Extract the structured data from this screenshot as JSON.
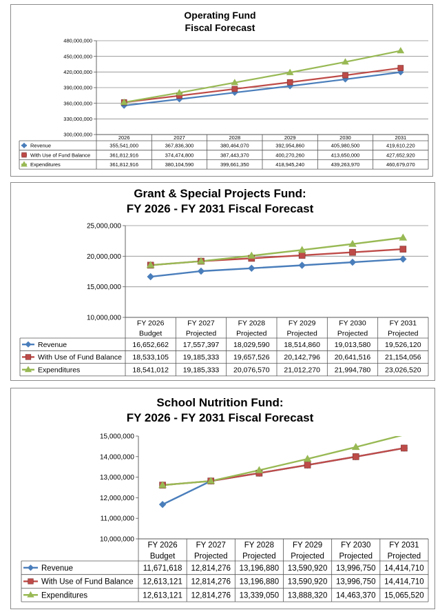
{
  "chart_data": [
    {
      "type": "line",
      "title": "Operating Fund",
      "subtitle": "Fiscal Forecast",
      "categories": [
        "2026",
        "2027",
        "2028",
        "2029",
        "2030",
        "2031"
      ],
      "category_lines": [
        [
          "2026"
        ],
        [
          "2027"
        ],
        [
          "2028"
        ],
        [
          "2029"
        ],
        [
          "2030"
        ],
        [
          "2031"
        ]
      ],
      "ylim": [
        300000000,
        480000000
      ],
      "yticks": [
        300000000,
        330000000,
        360000000,
        390000000,
        420000000,
        450000000,
        480000000
      ],
      "ytick_labels": [
        "300,000,000",
        "330,000,000",
        "360,000,000",
        "390,000,000",
        "420,000,000",
        "450,000,000",
        "480,000,000"
      ],
      "grid": true,
      "legend": "data-table",
      "series": [
        {
          "name": "Revenue",
          "color": "#4a7ebb",
          "marker": "diamond",
          "values": [
            355541000,
            367836300,
            380464070,
            392954860,
            405980500,
            419610220
          ],
          "labels": [
            "355,541,000",
            "367,836,300",
            "380,464,070",
            "392,954,860",
            "405,980,500",
            "419,610,220"
          ]
        },
        {
          "name": "With Use of Fund Balance",
          "color": "#be4b48",
          "marker": "square",
          "values": [
            361812916,
            374474800,
            387443370,
            400270260,
            413650000,
            427652920
          ],
          "labels": [
            "361,812,916",
            "374,474,800",
            "387,443,370",
            "400,270,260",
            "413,650,000",
            "427,652,920"
          ]
        },
        {
          "name": "Expenditures",
          "color": "#98b954",
          "marker": "triangle",
          "values": [
            361812916,
            380104590,
            399661350,
            418945240,
            439263970,
            460679070
          ],
          "labels": [
            "361,812,916",
            "380,104,590",
            "399,661,350",
            "418,945,240",
            "439,263,970",
            "460,679,070"
          ]
        }
      ]
    },
    {
      "type": "line",
      "title": "Grant & Special Projects Fund:",
      "subtitle": "FY 2026 - FY 2031 Fiscal Forecast",
      "categories": [
        "FY 2026 Budget",
        "FY 2027 Projected",
        "FY 2028 Projected",
        "FY 2029 Projected",
        "FY 2030 Projected",
        "FY 2031 Projected"
      ],
      "category_lines": [
        [
          "FY 2026",
          "Budget"
        ],
        [
          "FY 2027",
          "Projected"
        ],
        [
          "FY 2028",
          "Projected"
        ],
        [
          "FY 2029",
          "Projected"
        ],
        [
          "FY 2030",
          "Projected"
        ],
        [
          "FY 2031",
          "Projected"
        ]
      ],
      "ylim": [
        10000000,
        25000000
      ],
      "yticks": [
        10000000,
        15000000,
        20000000,
        25000000
      ],
      "ytick_labels": [
        "10,000,000",
        "15,000,000",
        "20,000,000",
        "25,000,000"
      ],
      "grid": true,
      "legend": "data-table",
      "series": [
        {
          "name": "Revenue",
          "color": "#4a7ebb",
          "marker": "diamond",
          "values": [
            16652662,
            17557397,
            18029590,
            18514860,
            19013580,
            19526120
          ],
          "labels": [
            "16,652,662",
            "17,557,397",
            "18,029,590",
            "18,514,860",
            "19,013,580",
            "19,526,120"
          ]
        },
        {
          "name": "With Use of Fund Balance",
          "color": "#be4b48",
          "marker": "square",
          "values": [
            18533105,
            19185333,
            19657526,
            20142796,
            20641516,
            21154056
          ],
          "labels": [
            "18,533,105",
            "19,185,333",
            "19,657,526",
            "20,142,796",
            "20,641,516",
            "21,154,056"
          ]
        },
        {
          "name": "Expenditures",
          "color": "#98b954",
          "marker": "triangle",
          "values": [
            18541012,
            19185333,
            20076570,
            21012270,
            21994780,
            23026520
          ],
          "labels": [
            "18,541,012",
            "19,185,333",
            "20,076,570",
            "21,012,270",
            "21,994,780",
            "23,026,520"
          ]
        }
      ]
    },
    {
      "type": "line",
      "title": "School Nutrition Fund:",
      "subtitle": "FY 2026 - FY 2031 Fiscal Forecast",
      "categories": [
        "FY 2026 Budget",
        "FY 2027 Projected",
        "FY 2028 Projected",
        "FY 2029 Projected",
        "FY 2030 Projected",
        "FY 2031 Projected"
      ],
      "category_lines": [
        [
          "FY 2026",
          "Budget"
        ],
        [
          "FY 2027",
          "Projected"
        ],
        [
          "FY 2028",
          "Projected"
        ],
        [
          "FY 2029",
          "Projected"
        ],
        [
          "FY 2030",
          "Projected"
        ],
        [
          "FY 2031",
          "Projected"
        ]
      ],
      "ylim": [
        10000000,
        15000000
      ],
      "yticks": [
        10000000,
        11000000,
        12000000,
        13000000,
        14000000,
        15000000
      ],
      "ytick_labels": [
        "10,000,000",
        "11,000,000",
        "12,000,000",
        "13,000,000",
        "14,000,000",
        "15,000,000"
      ],
      "grid": false,
      "legend": "data-table",
      "series": [
        {
          "name": "Revenue",
          "color": "#4a7ebb",
          "marker": "diamond",
          "values": [
            11671618,
            12814276,
            13196880,
            13590920,
            13996750,
            14414710
          ],
          "labels": [
            "11,671,618",
            "12,814,276",
            "13,196,880",
            "13,590,920",
            "13,996,750",
            "14,414,710"
          ]
        },
        {
          "name": "With Use of Fund Balance",
          "color": "#be4b48",
          "marker": "square",
          "values": [
            12613121,
            12814276,
            13196880,
            13590920,
            13996750,
            14414710
          ],
          "labels": [
            "12,613,121",
            "12,814,276",
            "13,196,880",
            "13,590,920",
            "13,996,750",
            "14,414,710"
          ]
        },
        {
          "name": "Expenditures",
          "color": "#98b954",
          "marker": "triangle",
          "values": [
            12613121,
            12814276,
            13339050,
            13888320,
            14463370,
            15065520
          ],
          "labels": [
            "12,613,121",
            "12,814,276",
            "13,339,050",
            "13,888,320",
            "14,463,370",
            "15,065,520"
          ]
        }
      ]
    }
  ]
}
